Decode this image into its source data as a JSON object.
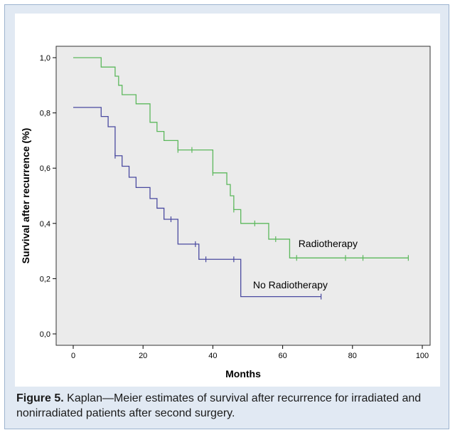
{
  "caption": {
    "label": "Figure 5.",
    "text": "Kaplan—Meier estimates of survival after recurrence for irradiated and nonirradiated patients after second surgery."
  },
  "chart_data": {
    "type": "line",
    "step": true,
    "xlabel": "Months",
    "ylabel": "Survival after recurrence (%)",
    "xlim": [
      0,
      100
    ],
    "ylim": [
      0,
      1
    ],
    "xticks": [
      0,
      20,
      40,
      60,
      80,
      100
    ],
    "xtick_labels": [
      "0",
      "20",
      "40",
      "60",
      "80",
      "100"
    ],
    "yticks": [
      0,
      0.2,
      0.4,
      0.6,
      0.8,
      1.0
    ],
    "ytick_labels": [
      "0,0",
      "0,2",
      "0,4",
      "0,6",
      "0,8",
      "1,0"
    ],
    "plot_background": "#ebebeb",
    "grid": false,
    "series": [
      {
        "name": "Radiotherapy",
        "color": "#5cb85c",
        "steps": [
          [
            0,
            1.0
          ],
          [
            8,
            0.966
          ],
          [
            12,
            0.933
          ],
          [
            13,
            0.9
          ],
          [
            14,
            0.866
          ],
          [
            18,
            0.833
          ],
          [
            22,
            0.766
          ],
          [
            24,
            0.733
          ],
          [
            26,
            0.7
          ],
          [
            30,
            0.666
          ],
          [
            40,
            0.583
          ],
          [
            44,
            0.541
          ],
          [
            45,
            0.5
          ],
          [
            46,
            0.45
          ],
          [
            48,
            0.4
          ],
          [
            56,
            0.343
          ],
          [
            62,
            0.275
          ],
          [
            96,
            0.275
          ]
        ],
        "censored": [
          [
            30,
            0.666
          ],
          [
            34,
            0.666
          ],
          [
            40,
            0.583
          ],
          [
            46,
            0.45
          ],
          [
            52,
            0.4
          ],
          [
            58,
            0.343
          ],
          [
            64,
            0.275
          ],
          [
            78,
            0.275
          ],
          [
            83,
            0.275
          ],
          [
            96,
            0.275
          ]
        ]
      },
      {
        "name": "No Radiotherapy",
        "color": "#4a4aa0",
        "steps": [
          [
            0,
            0.82
          ],
          [
            8,
            0.787
          ],
          [
            10,
            0.75
          ],
          [
            12,
            0.645
          ],
          [
            14,
            0.607
          ],
          [
            16,
            0.567
          ],
          [
            18,
            0.53
          ],
          [
            22,
            0.49
          ],
          [
            24,
            0.455
          ],
          [
            26,
            0.415
          ],
          [
            30,
            0.325
          ],
          [
            36,
            0.27
          ],
          [
            48,
            0.135
          ],
          [
            71,
            0.135
          ]
        ],
        "censored": [
          [
            12,
            0.645
          ],
          [
            28,
            0.415
          ],
          [
            35,
            0.325
          ],
          [
            38,
            0.27
          ],
          [
            46,
            0.27
          ],
          [
            71,
            0.135
          ]
        ]
      }
    ],
    "annotations": [
      {
        "text": "Radiotherapy",
        "x": 64.5,
        "y": 0.315
      },
      {
        "text": "No Radiotherapy",
        "x": 51.5,
        "y": 0.165
      }
    ]
  }
}
